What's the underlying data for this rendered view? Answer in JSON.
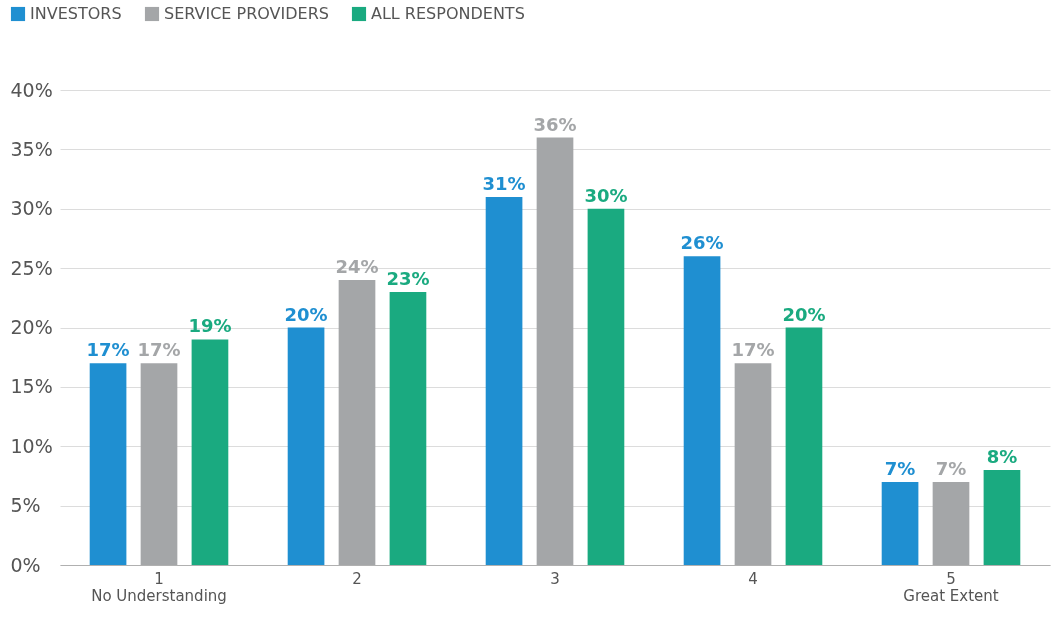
{
  "chart_data": {
    "type": "bar",
    "categories": [
      "1\nNo Understanding",
      "2",
      "3",
      "4",
      "5\nGreat Extent"
    ],
    "series": [
      {
        "name": "INVESTORS",
        "color": "#1f8fd1",
        "values": [
          17,
          20,
          31,
          26,
          7
        ],
        "value_labels": [
          "17%",
          "20%",
          "31%",
          "26%",
          "7%"
        ]
      },
      {
        "name": "SERVICE PROVIDERS",
        "color": "#a4a6a8",
        "values": [
          17,
          24,
          36,
          17,
          7
        ],
        "value_labels": [
          "17%",
          "24%",
          "36%",
          "17%",
          "7%"
        ]
      },
      {
        "name": "ALL RESPONDENTS",
        "color": "#1aaa80",
        "values": [
          19,
          23,
          30,
          20,
          8
        ],
        "value_labels": [
          "19%",
          "23%",
          "30%",
          "20%",
          "8%"
        ]
      }
    ],
    "ylim": [
      0,
      40
    ],
    "yticks": [
      {
        "value": 0,
        "label": "0%"
      },
      {
        "value": 5,
        "label": "5%"
      },
      {
        "value": 10,
        "label": "10%"
      },
      {
        "value": 15,
        "label": "15%"
      },
      {
        "value": 20,
        "label": "20%"
      },
      {
        "value": 25,
        "label": "25%"
      },
      {
        "value": 30,
        "label": "30%"
      },
      {
        "value": 35,
        "label": "35%"
      },
      {
        "value": 40,
        "label": "40%"
      }
    ],
    "grid": "y",
    "legend": "top left"
  }
}
